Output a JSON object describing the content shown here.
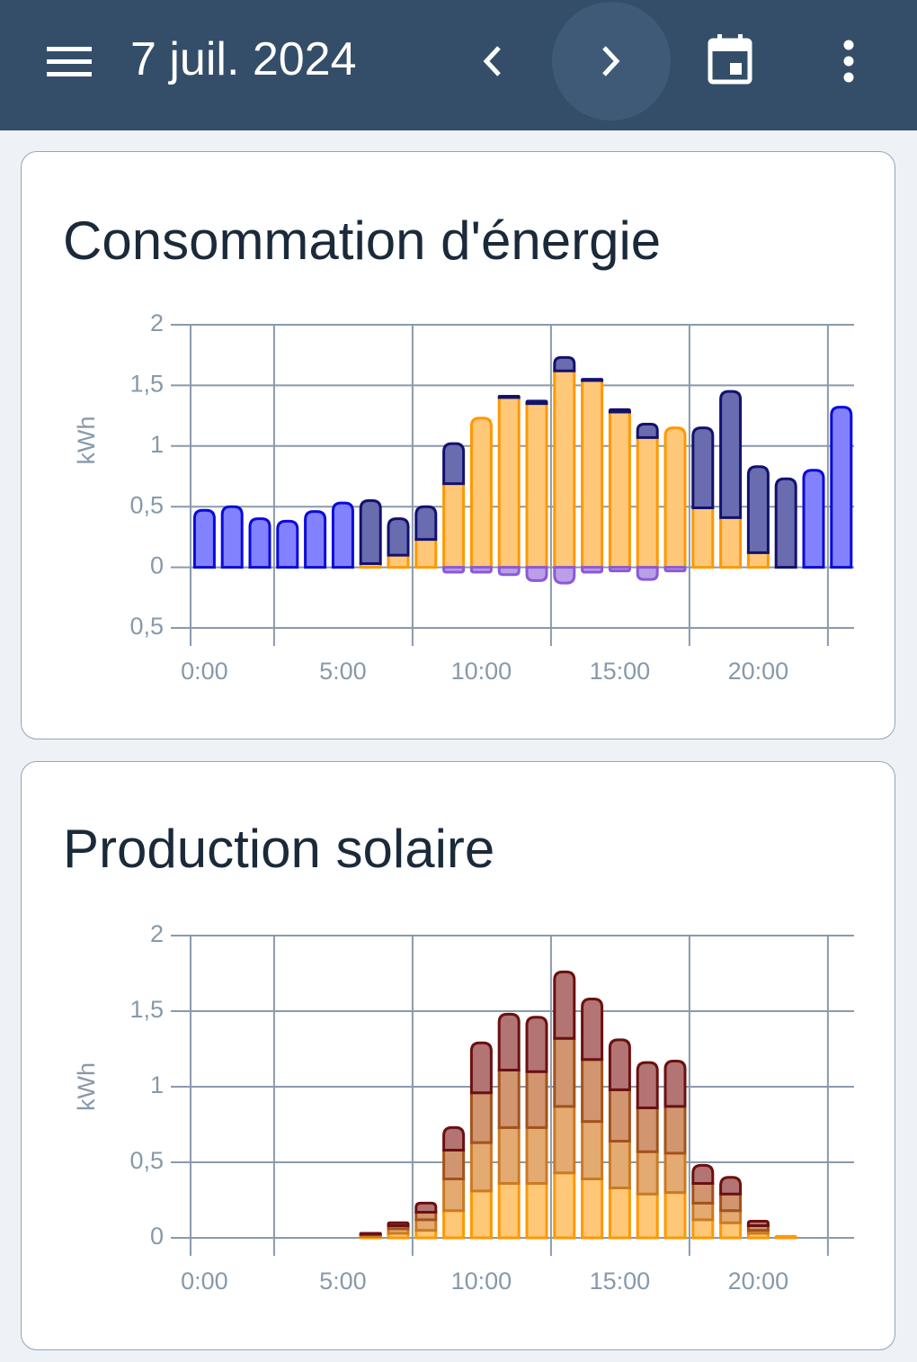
{
  "header": {
    "title": "7 juil. 2024"
  },
  "chart_data": [
    {
      "type": "bar",
      "title": "Consommation d'énergie",
      "stacked": true,
      "ylabel": "kWh",
      "categories": [
        "0:00",
        null,
        null,
        null,
        null,
        "5:00",
        null,
        null,
        null,
        null,
        "10:00",
        null,
        null,
        null,
        null,
        "15:00",
        null,
        null,
        null,
        null,
        "20:00",
        null,
        null,
        null
      ],
      "ylim": [
        -0.5,
        2
      ],
      "yticks": [
        {
          "value": -0.5,
          "label": "0,5"
        },
        0,
        {
          "value": 0.5,
          "label": "0,5"
        },
        1,
        {
          "value": 1.5,
          "label": "1,5"
        },
        2
      ],
      "grid": true,
      "series": [
        {
          "color": "#8282ff",
          "edge_color": "#0a0adc",
          "values": [
            0.47,
            0.5,
            0.4,
            0.38,
            0.46,
            0.53,
            null,
            null,
            null,
            null,
            null,
            null,
            null,
            null,
            null,
            null,
            null,
            null,
            null,
            null,
            null,
            null,
            0.8,
            1.32
          ]
        },
        {
          "color": "#ffc878",
          "edge_color": "#ff9800",
          "values": [
            null,
            null,
            null,
            null,
            null,
            null,
            0.03,
            0.1,
            0.23,
            0.69,
            1.23,
            1.4,
            1.35,
            1.62,
            1.54,
            1.28,
            1.07,
            1.15,
            0.49,
            0.41,
            0.12,
            null,
            null,
            null
          ]
        },
        {
          "color": "#6a6cb0",
          "edge_color": "#12126e",
          "values": [
            null,
            null,
            null,
            null,
            null,
            null,
            0.52,
            0.3,
            0.27,
            0.33,
            null,
            0.01,
            0.02,
            0.11,
            0.01,
            0.02,
            0.11,
            null,
            0.66,
            1.04,
            0.71,
            0.73,
            null,
            null
          ]
        },
        {
          "color": "#bb9ee8",
          "edge_color": "#8a5ad6",
          "values": [
            null,
            null,
            null,
            null,
            null,
            null,
            null,
            null,
            null,
            -0.04,
            -0.04,
            -0.06,
            -0.11,
            -0.13,
            -0.04,
            -0.03,
            -0.1,
            -0.03,
            null,
            null,
            null,
            null,
            null,
            null
          ]
        }
      ]
    },
    {
      "type": "bar",
      "title": "Production solaire",
      "stacked": true,
      "ylabel": "kWh",
      "categories": [
        "0:00",
        null,
        null,
        null,
        null,
        "5:00",
        null,
        null,
        null,
        null,
        "10:00",
        null,
        null,
        null,
        null,
        "15:00",
        null,
        null,
        null,
        null,
        "20:00",
        null,
        null,
        null
      ],
      "ylim": [
        0,
        2
      ],
      "yticks": [
        0,
        {
          "value": 0.5,
          "label": "0,5"
        },
        1,
        {
          "value": 1.5,
          "label": "1,5"
        },
        2
      ],
      "grid": true,
      "series": [
        {
          "color": "#ffc878",
          "edge_color": "#ff9800",
          "values": [
            null,
            null,
            null,
            null,
            null,
            null,
            0.01,
            0.03,
            0.05,
            0.18,
            0.31,
            0.36,
            0.36,
            0.43,
            0.39,
            0.33,
            0.29,
            0.3,
            0.12,
            0.1,
            0.03,
            0.01,
            null,
            null
          ]
        },
        {
          "color": "#e3aa72",
          "edge_color": "#cc7a22",
          "values": [
            null,
            null,
            null,
            null,
            null,
            null,
            0.01,
            0.03,
            0.07,
            0.21,
            0.32,
            0.37,
            0.37,
            0.44,
            0.38,
            0.31,
            0.28,
            0.26,
            0.11,
            0.08,
            0.02,
            null,
            null,
            null
          ]
        },
        {
          "color": "#d19670",
          "edge_color": "#a3521c",
          "values": [
            null,
            null,
            null,
            null,
            null,
            null,
            0.005,
            0.02,
            0.05,
            0.19,
            0.33,
            0.38,
            0.37,
            0.45,
            0.41,
            0.34,
            0.29,
            0.31,
            0.13,
            0.11,
            0.03,
            null,
            null,
            null
          ]
        },
        {
          "color": "#b37474",
          "edge_color": "#6b1010",
          "values": [
            null,
            null,
            null,
            null,
            null,
            null,
            0.005,
            0.02,
            0.06,
            0.15,
            0.33,
            0.37,
            0.36,
            0.44,
            0.4,
            0.33,
            0.3,
            0.3,
            0.12,
            0.11,
            0.03,
            null,
            null,
            null
          ]
        }
      ]
    }
  ]
}
